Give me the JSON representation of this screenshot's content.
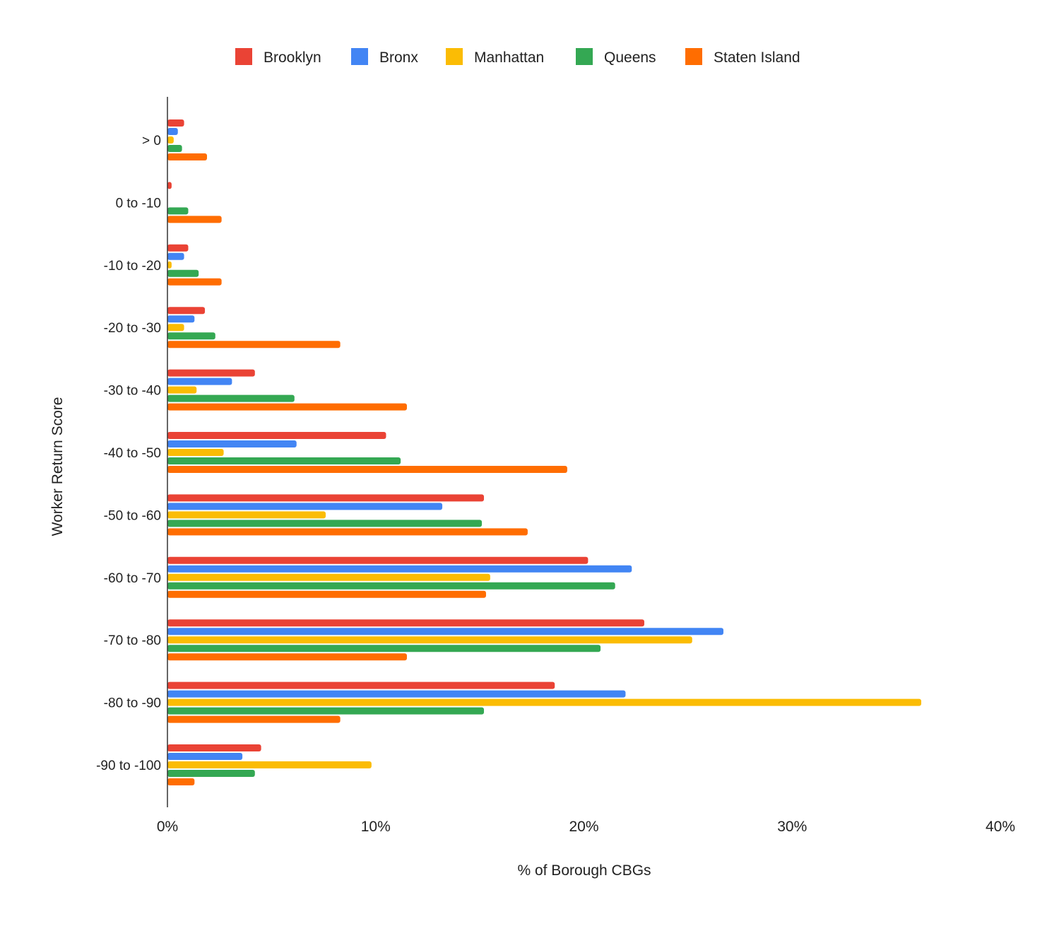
{
  "chart_data": {
    "type": "bar",
    "orientation": "horizontal",
    "title": "",
    "xlabel": "% of Borough CBGs",
    "ylabel": "Worker Return Score",
    "xlim": [
      0,
      40
    ],
    "x_ticks": [
      "0%",
      "10%",
      "20%",
      "30%",
      "40%"
    ],
    "x_tick_values": [
      0,
      10,
      20,
      30,
      40
    ],
    "grid": false,
    "legend_position": "top-center",
    "categories": [
      "> 0",
      "0 to -10",
      "-10 to -20",
      "-20 to -30",
      "-30 to -40",
      "-40 to -50",
      "-50 to -60",
      "-60 to -70",
      "-70 to -80",
      "-80 to -90",
      "-90 to -100"
    ],
    "series": [
      {
        "name": "Brooklyn",
        "color": "#EA4335",
        "values": [
          0.8,
          0.2,
          1.0,
          1.8,
          4.2,
          10.5,
          15.2,
          20.2,
          22.9,
          18.6,
          4.5
        ]
      },
      {
        "name": "Bronx",
        "color": "#4285F4",
        "values": [
          0.5,
          0,
          0.8,
          1.3,
          3.1,
          6.2,
          13.2,
          22.3,
          26.7,
          22.0,
          3.6
        ]
      },
      {
        "name": "Manhattan",
        "color": "#FBBC04",
        "values": [
          0.3,
          0,
          0.2,
          0.8,
          1.4,
          2.7,
          7.6,
          15.5,
          25.2,
          36.2,
          9.8
        ]
      },
      {
        "name": "Queens",
        "color": "#34A853",
        "values": [
          0.7,
          1.0,
          1.5,
          2.3,
          6.1,
          11.2,
          15.1,
          21.5,
          20.8,
          15.2,
          4.2
        ]
      },
      {
        "name": "Staten Island",
        "color": "#FF6D01",
        "values": [
          1.9,
          2.6,
          2.6,
          8.3,
          11.5,
          19.2,
          17.3,
          15.3,
          11.5,
          8.3,
          1.3
        ]
      }
    ]
  }
}
